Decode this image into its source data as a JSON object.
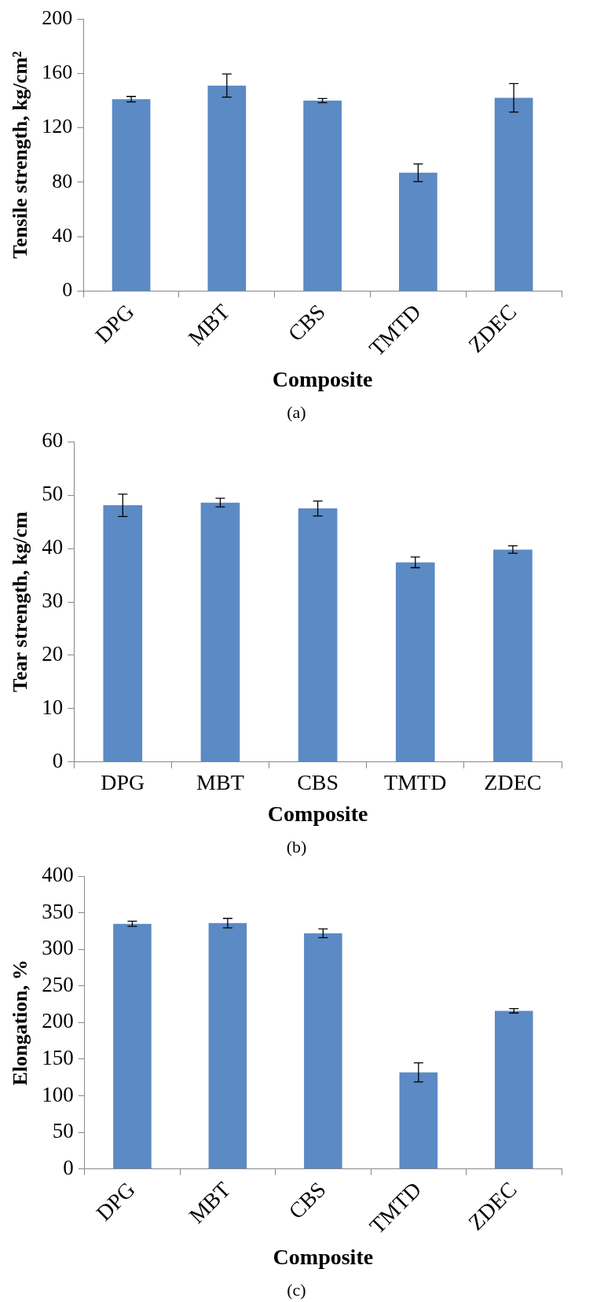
{
  "chart_data": [
    {
      "type": "bar",
      "categories": [
        "DPG",
        "MBT",
        "CBS",
        "TMTD",
        "ZDEC"
      ],
      "values": [
        141,
        151,
        140,
        87,
        142
      ],
      "errors": [
        2,
        8.5,
        1.5,
        6.5,
        10.5
      ],
      "color": "#5b8ac4",
      "xlabel": "Composite",
      "ylabel": "Tensile strength, kg/cm²",
      "ylim": [
        0,
        200
      ],
      "yticks": [
        0,
        40,
        80,
        120,
        160,
        200
      ],
      "annotations": [
        "(a)"
      ]
    },
    {
      "type": "bar",
      "categories": [
        "DPG",
        "MBT",
        "CBS",
        "TMTD",
        "ZDEC"
      ],
      "values": [
        48.1,
        48.6,
        47.5,
        37.4,
        39.8
      ],
      "errors": [
        2.1,
        0.8,
        1.4,
        1,
        0.7
      ],
      "color": "#5b8ac4",
      "xlabel": "Composite",
      "ylabel": "Tear strength, kg/cm",
      "ylim": [
        0,
        60
      ],
      "yticks": [
        0,
        10,
        20,
        30,
        40,
        50,
        60
      ],
      "annotations": [
        "(b)"
      ]
    },
    {
      "type": "bar",
      "categories": [
        "DPG",
        "MBT",
        "CBS",
        "TMTD",
        "ZDEC"
      ],
      "values": [
        335,
        336,
        322,
        132,
        216
      ],
      "errors": [
        3.5,
        6.5,
        6,
        13,
        3
      ],
      "color": "#5b8ac4",
      "xlabel": "Composite",
      "ylabel": "Elongation, %",
      "ylim": [
        0,
        400
      ],
      "yticks": [
        0,
        50,
        100,
        150,
        200,
        250,
        300,
        350,
        400
      ],
      "annotations": [
        "(c)"
      ]
    }
  ]
}
